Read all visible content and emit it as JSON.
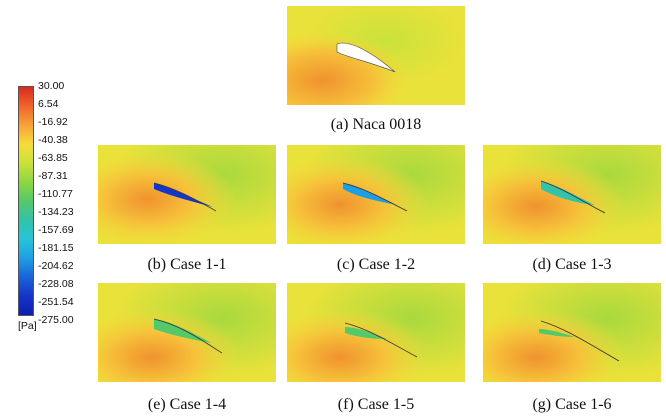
{
  "legend": {
    "unit": "[Pa]",
    "labels": [
      "30.00",
      "6.54",
      "-16.92",
      "-40.38",
      "-63.85",
      "-87.31",
      "-110.77",
      "-134.23",
      "-157.69",
      "-181.15",
      "-204.62",
      "-228.08",
      "-251.54",
      "-275.00"
    ],
    "gradient_colors": [
      "#d62a1f",
      "#f0642a",
      "#f7a13b",
      "#f6dc3a",
      "#c9e23a",
      "#8fd642",
      "#55c96a",
      "#34c2a8",
      "#28c4d6",
      "#1f9fe3",
      "#1a64d8",
      "#1534c8",
      "#0d1fb2"
    ]
  },
  "panels": [
    {
      "id": "a",
      "caption": "(a) Naca 0018"
    },
    {
      "id": "b",
      "caption": "(b) Case 1-1"
    },
    {
      "id": "c",
      "caption": "(c) Case 1-2"
    },
    {
      "id": "d",
      "caption": "(d) Case 1-3"
    },
    {
      "id": "e",
      "caption": "(e) Case 1-4"
    },
    {
      "id": "f",
      "caption": "(f) Case 1-5"
    },
    {
      "id": "g",
      "caption": "(g) Case 1-6"
    }
  ]
}
